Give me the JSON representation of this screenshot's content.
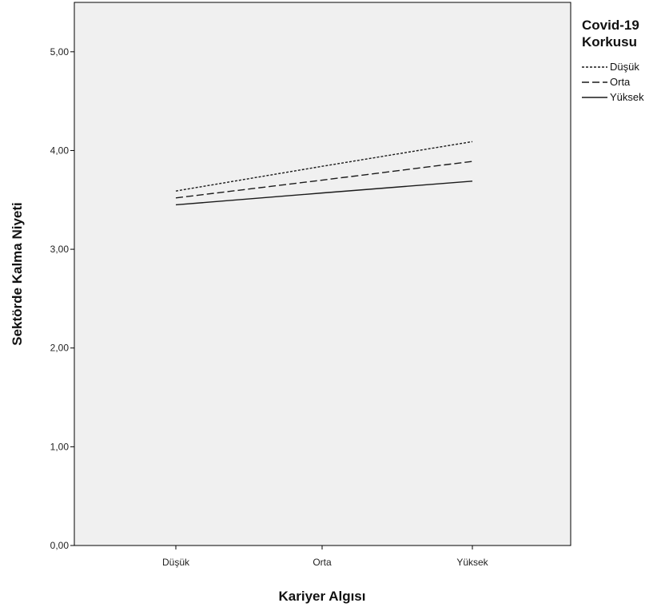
{
  "chart_data": {
    "type": "line",
    "xlabel": "Kariyer Algısı",
    "ylabel": "Sektörde Kalma Niyeti",
    "categories": [
      "Düşük",
      "Orta",
      "Yüksek"
    ],
    "ylim": [
      0,
      5.5
    ],
    "yticks": [
      "0,00",
      "1,00",
      "2,00",
      "3,00",
      "4,00",
      "5,00"
    ],
    "ytick_values": [
      0,
      1,
      2,
      3,
      4,
      5
    ],
    "grid": false,
    "plot_background": "#f0f0f0",
    "line_color": "#1a1a1a",
    "legend": {
      "title_line1": "Covid-19",
      "title_line2": "Korkusu",
      "placement": "right, outside plot"
    },
    "series": [
      {
        "name": "Düşük",
        "style": "dotted",
        "values": [
          3.59,
          3.84,
          4.09
        ]
      },
      {
        "name": "Orta",
        "style": "dashed",
        "values": [
          3.52,
          3.7,
          3.89
        ]
      },
      {
        "name": "Yüksek",
        "style": "solid",
        "values": [
          3.45,
          3.57,
          3.69
        ]
      }
    ]
  }
}
